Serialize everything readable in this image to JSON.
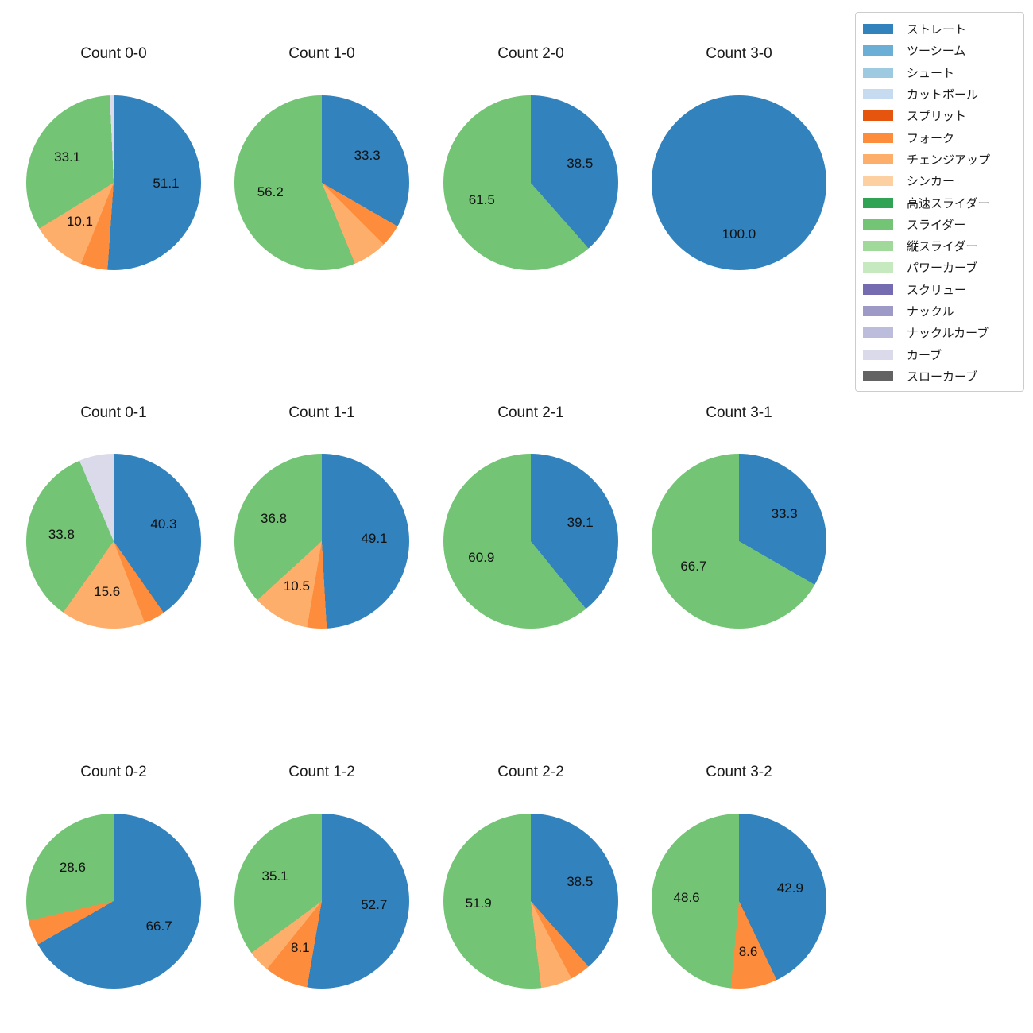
{
  "page": {
    "background": "#ffffff"
  },
  "legend": {
    "items": [
      {
        "label": "ストレート",
        "color": "#3182bd",
        "icon": "straight-swatch-icon"
      },
      {
        "label": "ツーシーム",
        "color": "#6baed6",
        "icon": "two-seam-swatch-icon"
      },
      {
        "label": "シュート",
        "color": "#9ecae1",
        "icon": "shuuto-swatch-icon"
      },
      {
        "label": "カットボール",
        "color": "#c6dbef",
        "icon": "cutball-swatch-icon"
      },
      {
        "label": "スプリット",
        "color": "#e6550d",
        "icon": "split-swatch-icon"
      },
      {
        "label": "フォーク",
        "color": "#fd8d3c",
        "icon": "fork-swatch-icon"
      },
      {
        "label": "チェンジアップ",
        "color": "#fdae6b",
        "icon": "changeup-swatch-icon"
      },
      {
        "label": "シンカー",
        "color": "#fdd0a2",
        "icon": "sinker-swatch-icon"
      },
      {
        "label": "高速スライダー",
        "color": "#31a354",
        "icon": "fast-slider-swatch-icon"
      },
      {
        "label": "スライダー",
        "color": "#74c476",
        "icon": "slider-swatch-icon"
      },
      {
        "label": "縦スライダー",
        "color": "#a1d99b",
        "icon": "vertical-slider-swatch-icon"
      },
      {
        "label": "パワーカーブ",
        "color": "#c7e9c0",
        "icon": "power-curve-swatch-icon"
      },
      {
        "label": "スクリュー",
        "color": "#756bb1",
        "icon": "screw-swatch-icon"
      },
      {
        "label": "ナックル",
        "color": "#9e9ac8",
        "icon": "knuckle-swatch-icon"
      },
      {
        "label": "ナックルカーブ",
        "color": "#bcbddc",
        "icon": "knuckle-curve-swatch-icon"
      },
      {
        "label": "カーブ",
        "color": "#dadaeb",
        "icon": "curve-swatch-icon"
      },
      {
        "label": "スローカーブ",
        "color": "#636363",
        "icon": "slow-curve-swatch-icon"
      }
    ]
  },
  "chart_data": [
    {
      "type": "pie",
      "id": "count-0-0",
      "title": "Count 0-0",
      "start_angle": "top",
      "direction": "clockwise",
      "label_radius_ratio": 0.6,
      "slices": [
        {
          "name": "ストレート",
          "value": 51.1,
          "color": "#3182bd",
          "show_label": true
        },
        {
          "name": "フォーク",
          "value": 5.0,
          "color": "#fd8d3c",
          "show_label": false
        },
        {
          "name": "チェンジアップ",
          "value": 10.1,
          "color": "#fdae6b",
          "show_label": true
        },
        {
          "name": "スライダー",
          "value": 33.1,
          "color": "#74c476",
          "show_label": true
        },
        {
          "name": "カーブ",
          "value": 0.7,
          "color": "#dadaeb",
          "show_label": false
        }
      ]
    },
    {
      "type": "pie",
      "id": "count-1-0",
      "title": "Count 1-0",
      "start_angle": "top",
      "direction": "clockwise",
      "label_radius_ratio": 0.6,
      "slices": [
        {
          "name": "ストレート",
          "value": 33.3,
          "color": "#3182bd",
          "show_label": true
        },
        {
          "name": "フォーク",
          "value": 4.2,
          "color": "#fd8d3c",
          "show_label": false
        },
        {
          "name": "チェンジアップ",
          "value": 6.3,
          "color": "#fdae6b",
          "show_label": false
        },
        {
          "name": "スライダー",
          "value": 56.2,
          "color": "#74c476",
          "show_label": true
        }
      ]
    },
    {
      "type": "pie",
      "id": "count-2-0",
      "title": "Count 2-0",
      "start_angle": "top",
      "direction": "clockwise",
      "label_radius_ratio": 0.6,
      "slices": [
        {
          "name": "ストレート",
          "value": 38.5,
          "color": "#3182bd",
          "show_label": true
        },
        {
          "name": "スライダー",
          "value": 61.5,
          "color": "#74c476",
          "show_label": true
        }
      ]
    },
    {
      "type": "pie",
      "id": "count-3-0",
      "title": "Count 3-0",
      "start_angle": "top",
      "direction": "clockwise",
      "label_radius_ratio": 0.6,
      "slices": [
        {
          "name": "ストレート",
          "value": 100.0,
          "color": "#3182bd",
          "show_label": true
        }
      ]
    },
    {
      "type": "pie",
      "id": "count-0-1",
      "title": "Count 0-1",
      "start_angle": "top",
      "direction": "clockwise",
      "label_radius_ratio": 0.6,
      "slices": [
        {
          "name": "ストレート",
          "value": 40.3,
          "color": "#3182bd",
          "show_label": true
        },
        {
          "name": "フォーク",
          "value": 3.9,
          "color": "#fd8d3c",
          "show_label": false
        },
        {
          "name": "チェンジアップ",
          "value": 15.6,
          "color": "#fdae6b",
          "show_label": true
        },
        {
          "name": "スライダー",
          "value": 33.8,
          "color": "#74c476",
          "show_label": true
        },
        {
          "name": "カーブ",
          "value": 6.5,
          "color": "#dadaeb",
          "show_label": false
        }
      ]
    },
    {
      "type": "pie",
      "id": "count-1-1",
      "title": "Count 1-1",
      "start_angle": "top",
      "direction": "clockwise",
      "label_radius_ratio": 0.6,
      "slices": [
        {
          "name": "ストレート",
          "value": 49.1,
          "color": "#3182bd",
          "show_label": true
        },
        {
          "name": "フォーク",
          "value": 3.6,
          "color": "#fd8d3c",
          "show_label": false
        },
        {
          "name": "チェンジアップ",
          "value": 10.5,
          "color": "#fdae6b",
          "show_label": true
        },
        {
          "name": "スライダー",
          "value": 36.8,
          "color": "#74c476",
          "show_label": true
        }
      ]
    },
    {
      "type": "pie",
      "id": "count-2-1",
      "title": "Count 2-1",
      "start_angle": "top",
      "direction": "clockwise",
      "label_radius_ratio": 0.6,
      "slices": [
        {
          "name": "ストレート",
          "value": 39.1,
          "color": "#3182bd",
          "show_label": true
        },
        {
          "name": "スライダー",
          "value": 60.9,
          "color": "#74c476",
          "show_label": true
        }
      ]
    },
    {
      "type": "pie",
      "id": "count-3-1",
      "title": "Count 3-1",
      "start_angle": "top",
      "direction": "clockwise",
      "label_radius_ratio": 0.6,
      "slices": [
        {
          "name": "ストレート",
          "value": 33.3,
          "color": "#3182bd",
          "show_label": true
        },
        {
          "name": "スライダー",
          "value": 66.7,
          "color": "#74c476",
          "show_label": true
        }
      ]
    },
    {
      "type": "pie",
      "id": "count-0-2",
      "title": "Count 0-2",
      "start_angle": "top",
      "direction": "clockwise",
      "label_radius_ratio": 0.6,
      "slices": [
        {
          "name": "ストレート",
          "value": 66.7,
          "color": "#3182bd",
          "show_label": true
        },
        {
          "name": "フォーク",
          "value": 4.7,
          "color": "#fd8d3c",
          "show_label": false
        },
        {
          "name": "スライダー",
          "value": 28.6,
          "color": "#74c476",
          "show_label": true
        }
      ]
    },
    {
      "type": "pie",
      "id": "count-1-2",
      "title": "Count 1-2",
      "start_angle": "top",
      "direction": "clockwise",
      "label_radius_ratio": 0.6,
      "slices": [
        {
          "name": "ストレート",
          "value": 52.7,
          "color": "#3182bd",
          "show_label": true
        },
        {
          "name": "フォーク",
          "value": 8.1,
          "color": "#fd8d3c",
          "show_label": true
        },
        {
          "name": "チェンジアップ",
          "value": 4.1,
          "color": "#fdae6b",
          "show_label": false
        },
        {
          "name": "スライダー",
          "value": 35.1,
          "color": "#74c476",
          "show_label": true
        }
      ]
    },
    {
      "type": "pie",
      "id": "count-2-2",
      "title": "Count 2-2",
      "start_angle": "top",
      "direction": "clockwise",
      "label_radius_ratio": 0.6,
      "slices": [
        {
          "name": "ストレート",
          "value": 38.5,
          "color": "#3182bd",
          "show_label": true
        },
        {
          "name": "フォーク",
          "value": 3.8,
          "color": "#fd8d3c",
          "show_label": false
        },
        {
          "name": "チェンジアップ",
          "value": 5.8,
          "color": "#fdae6b",
          "show_label": false
        },
        {
          "name": "スライダー",
          "value": 51.9,
          "color": "#74c476",
          "show_label": true
        }
      ]
    },
    {
      "type": "pie",
      "id": "count-3-2",
      "title": "Count 3-2",
      "start_angle": "top",
      "direction": "clockwise",
      "label_radius_ratio": 0.6,
      "slices": [
        {
          "name": "ストレート",
          "value": 42.9,
          "color": "#3182bd",
          "show_label": true
        },
        {
          "name": "フォーク",
          "value": 8.6,
          "color": "#fd8d3c",
          "show_label": true
        },
        {
          "name": "スライダー",
          "value": 48.6,
          "color": "#74c476",
          "show_label": true
        }
      ]
    }
  ]
}
